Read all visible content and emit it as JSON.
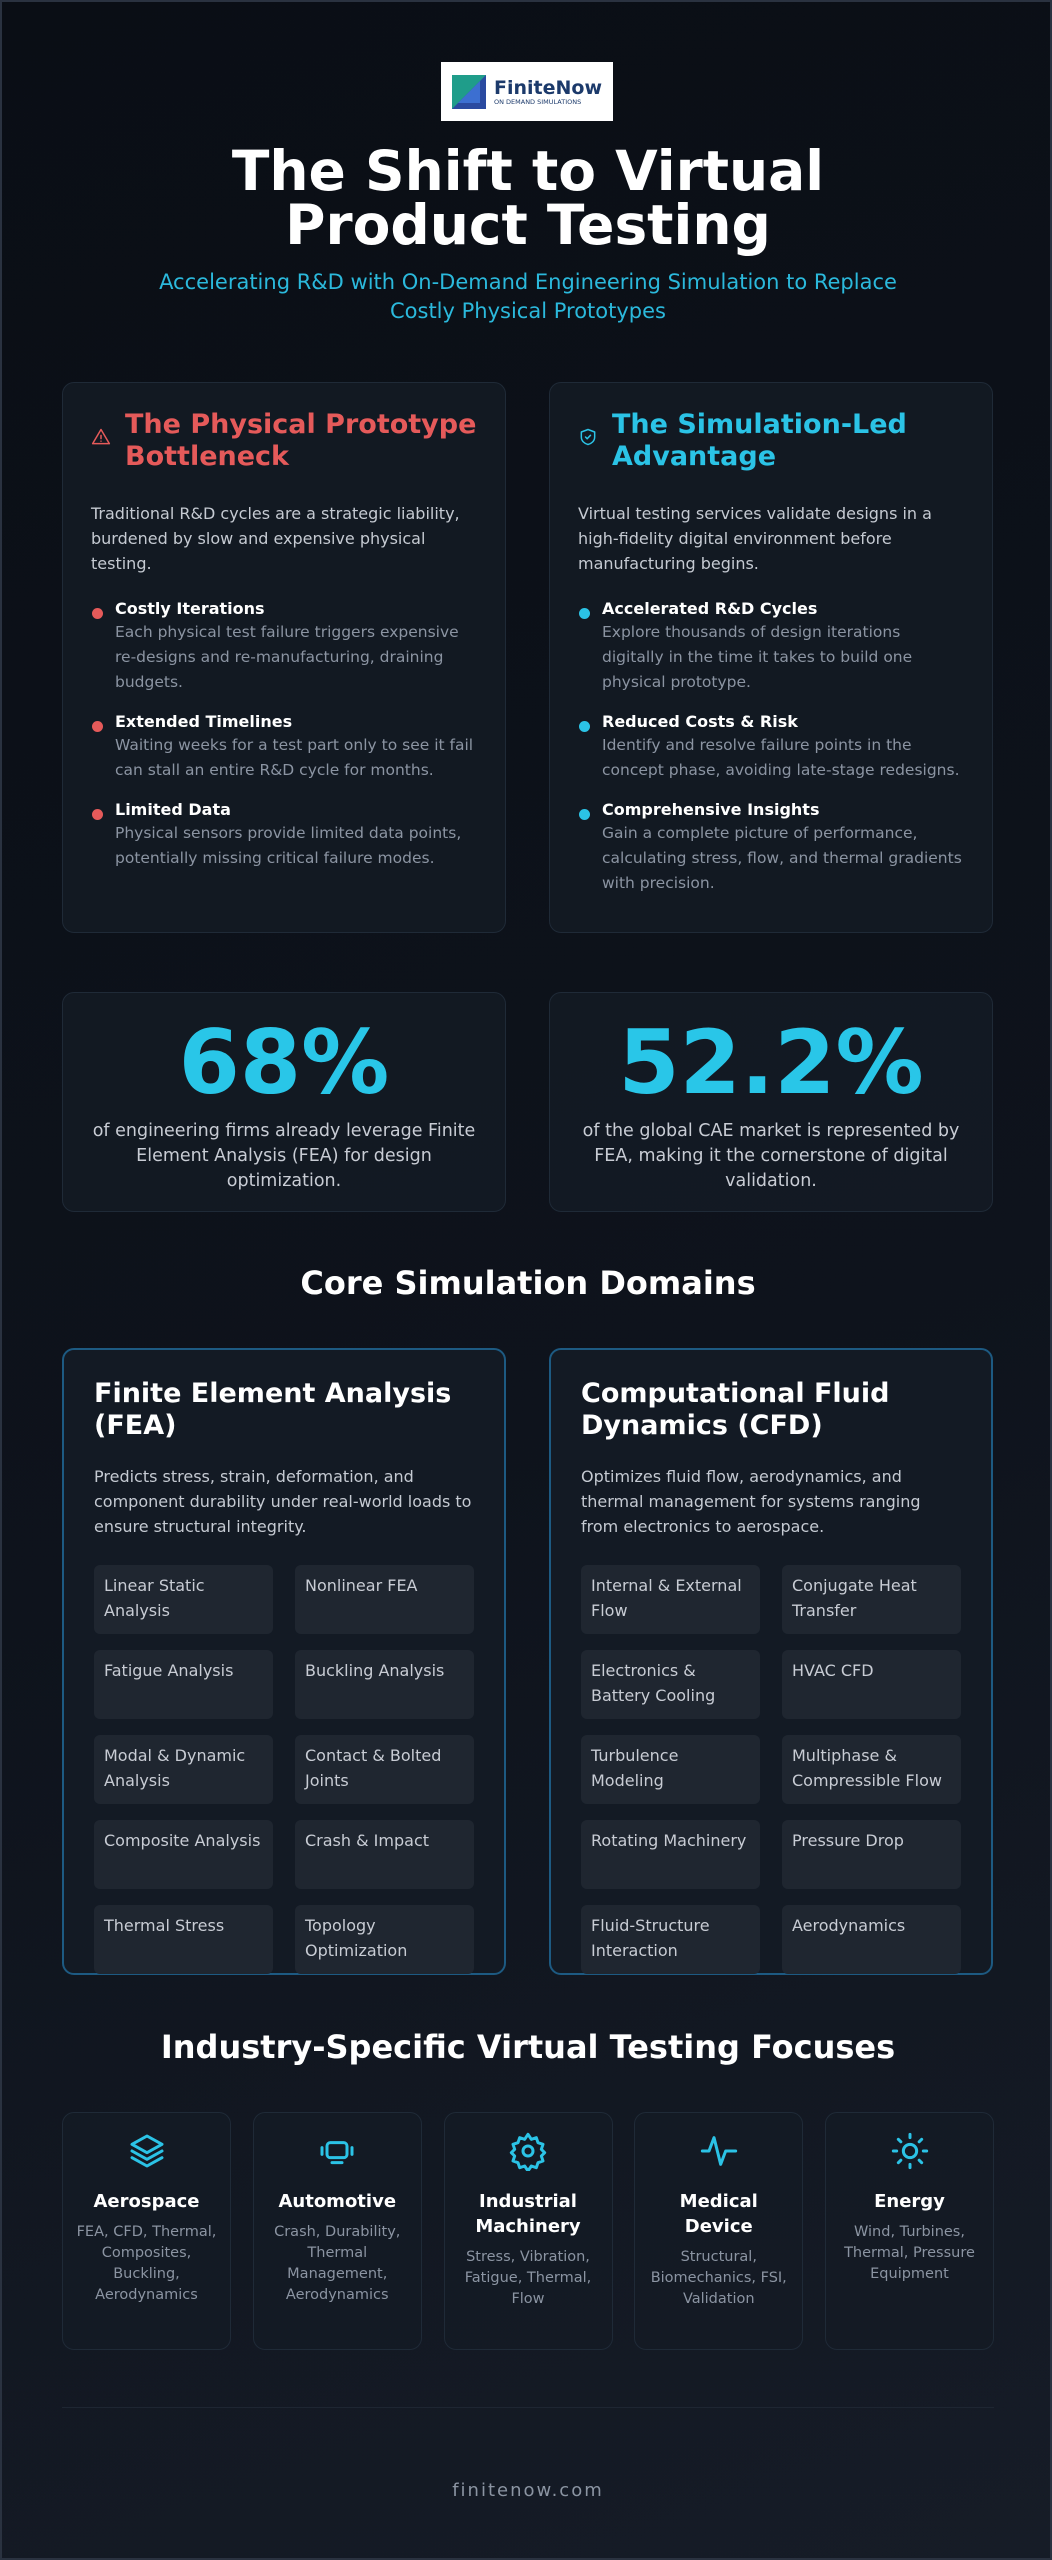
{
  "header": {
    "logo": {
      "name": "FiniteNow",
      "tagline": "ON DEMAND SIMULATIONS"
    },
    "title": "The Shift to Virtual Product Testing",
    "subtitle": "Accelerating R&D with On-Demand Engineering Simulation to Replace Costly Physical Prototypes"
  },
  "comparison": [
    {
      "title": "The Physical Prototype Bottleneck",
      "intro": "Traditional R&D cycles are a strategic liability, burdened by slow and expensive physical testing.",
      "items": [
        {
          "title": "Costly Iterations",
          "text": "Each physical test failure triggers expensive re-designs and re-manufacturing, draining budgets."
        },
        {
          "title": "Extended Timelines",
          "text": "Waiting weeks for a test part only to see it fail can stall an entire R&D cycle for months."
        },
        {
          "title": "Limited Data",
          "text": "Physical sensors provide limited data points, potentially missing critical failure modes."
        }
      ]
    },
    {
      "title": "The Simulation-Led Advantage",
      "intro": "Virtual testing services validate designs in a high-fidelity digital environment before manufacturing begins.",
      "items": [
        {
          "title": "Accelerated R&D Cycles",
          "text": "Explore thousands of design iterations digitally in the time it takes to build one physical prototype."
        },
        {
          "title": "Reduced Costs & Risk",
          "text": "Identify and resolve failure points in the concept phase, avoiding late-stage redesigns."
        },
        {
          "title": "Comprehensive Insights",
          "text": "Gain a complete picture of performance, calculating stress, flow, and thermal gradients with precision."
        }
      ]
    }
  ],
  "stats": [
    {
      "value": "68%",
      "text": "of engineering firms already leverage Finite Element Analysis (FEA) for design optimization."
    },
    {
      "value": "52.2%",
      "text": "of the global CAE market is represented by FEA, making it the cornerstone of digital validation."
    }
  ],
  "domains": {
    "heading": "Core Simulation Domains",
    "cards": [
      {
        "title": "Finite Element Analysis (FEA)",
        "text": "Predicts stress, strain, deformation, and component durability under real-world loads to ensure structural integrity.",
        "tags": [
          "Linear Static Analysis",
          "Nonlinear FEA",
          "Fatigue Analysis",
          "Buckling Analysis",
          "Modal & Dynamic Analysis",
          "Contact & Bolted Joints",
          "Composite Analysis",
          "Crash & Impact",
          "Thermal Stress",
          "Topology Optimization"
        ]
      },
      {
        "title": "Computational Fluid Dynamics (CFD)",
        "text": "Optimizes fluid flow, aerodynamics, and thermal management for systems ranging from electronics to aerospace.",
        "tags": [
          "Internal & External Flow",
          "Conjugate Heat Transfer",
          "Electronics & Battery Cooling",
          "HVAC CFD",
          "Turbulence Modeling",
          "Multiphase & Compressible Flow",
          "Rotating Machinery",
          "Pressure Drop",
          "Fluid-Structure Interaction",
          "Aerodynamics"
        ]
      }
    ]
  },
  "industries": {
    "heading": "Industry-Specific Virtual Testing Focuses",
    "items": [
      {
        "name": "Aerospace",
        "focus": "FEA, CFD, Thermal, Composites, Buckling, Aerodynamics"
      },
      {
        "name": "Automotive",
        "focus": "Crash, Durability, Thermal Management, Aerodynamics"
      },
      {
        "name": "Industrial Machinery",
        "focus": "Stress, Vibration, Fatigue, Thermal, Flow"
      },
      {
        "name": "Medical Device",
        "focus": "Structural, Biomechanics, FSI, Validation"
      },
      {
        "name": "Energy",
        "focus": "Wind, Turbines, Thermal, Pressure Equipment"
      }
    ]
  },
  "footer": "finitenow.com"
}
